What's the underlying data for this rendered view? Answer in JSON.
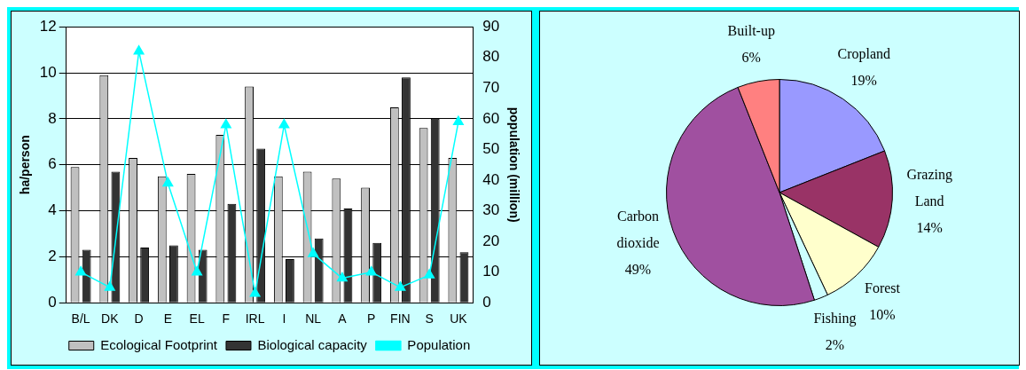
{
  "chart_data": [
    {
      "type": "bar",
      "categories": [
        "B/L",
        "DK",
        "D",
        "E",
        "EL",
        "F",
        "IRL",
        "I",
        "NL",
        "A",
        "P",
        "FIN",
        "S",
        "UK"
      ],
      "ylabel": "ha/person",
      "y2label": "population (million)",
      "ylim": [
        0,
        12
      ],
      "yticks": [
        0,
        2,
        4,
        6,
        8,
        10,
        12
      ],
      "y2lim": [
        0,
        90
      ],
      "y2ticks": [
        0,
        10,
        20,
        30,
        40,
        50,
        60,
        70,
        80,
        90
      ],
      "grid": "y",
      "legend": "bottom",
      "series": [
        {
          "name": "Ecological Footprint",
          "color": "#c0c0c0",
          "values": [
            5.9,
            9.9,
            6.3,
            5.5,
            5.6,
            7.3,
            9.4,
            5.5,
            5.7,
            5.4,
            5.0,
            8.5,
            7.6,
            6.3
          ]
        },
        {
          "name": "Biological capacity",
          "color": "#333333",
          "values": [
            2.3,
            5.7,
            2.4,
            2.5,
            2.3,
            4.3,
            6.7,
            1.9,
            2.8,
            4.1,
            2.6,
            9.8,
            8.0,
            2.2
          ]
        },
        {
          "name": "Population",
          "type": "line",
          "axis": "y2",
          "color": "#00ffff",
          "marker": "triangle",
          "values": [
            10,
            5,
            82,
            39,
            10,
            58,
            3,
            58,
            16,
            8,
            10,
            5,
            9,
            59
          ]
        }
      ]
    },
    {
      "type": "pie",
      "categories": [
        "Cropland",
        "Grazing Land",
        "Forest",
        "Fishing",
        "Carbon dioxide",
        "Built-up"
      ],
      "values": [
        19,
        14,
        10,
        2,
        49,
        6
      ],
      "colors": [
        "#9999ff",
        "#993366",
        "#ffffcc",
        "#ccffff",
        "#a050a0",
        "#ff8080"
      ],
      "value_labels": [
        "19%",
        "14%",
        "10%",
        "2%",
        "49%",
        "6%"
      ]
    }
  ]
}
